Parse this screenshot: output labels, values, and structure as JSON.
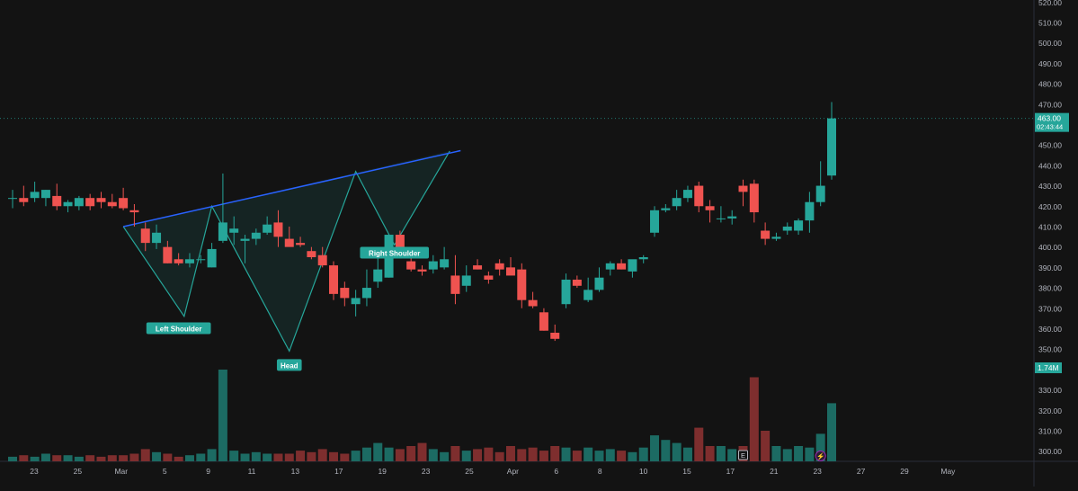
{
  "chart_data": {
    "type": "candlestick",
    "title": "",
    "theme": {
      "background": "#131313",
      "up": "#26a69a",
      "down": "#ef5350",
      "vol_up": "#1c6b63",
      "vol_down": "#7e2e2e",
      "trend": "#2962ff",
      "pattern": "#26a69a",
      "axis_text": "#b2b5be"
    },
    "y_axis": {
      "position": "right",
      "range": [
        295,
        521
      ],
      "ticks": [
        300,
        310,
        320,
        330,
        340,
        350,
        360,
        370,
        380,
        390,
        400,
        410,
        420,
        430,
        440,
        450,
        460,
        470,
        480,
        490,
        500,
        510,
        520
      ],
      "tick_labels": [
        "300.00",
        "310.00",
        "320.00",
        "330.00",
        "340.00",
        "350.00",
        "360.00",
        "370.00",
        "380.00",
        "390.00",
        "400.00",
        "410.00",
        "420.00",
        "430.00",
        "440.00",
        "450.00",
        "460.00",
        "470.00",
        "480.00",
        "490.00",
        "500.00",
        "510.00",
        "520.00"
      ]
    },
    "x_axis": {
      "ticks": [
        {
          "i": 2,
          "label": "23"
        },
        {
          "i": 4,
          "label": "25"
        },
        {
          "i": 6,
          "label": "Mar"
        },
        {
          "i": 8,
          "label": "5"
        },
        {
          "i": 10,
          "label": "9"
        },
        {
          "i": 12,
          "label": "11"
        },
        {
          "i": 14,
          "label": "13"
        },
        {
          "i": 16,
          "label": "17"
        },
        {
          "i": 18,
          "label": "19"
        },
        {
          "i": 20,
          "label": "23"
        },
        {
          "i": 22,
          "label": "25"
        },
        {
          "i": 24,
          "label": "Apr"
        },
        {
          "i": 26,
          "label": "6"
        },
        {
          "i": 28,
          "label": "8"
        },
        {
          "i": 30,
          "label": "10"
        },
        {
          "i": 32,
          "label": "15"
        },
        {
          "i": 34,
          "label": "17"
        },
        {
          "i": 36,
          "label": "21"
        },
        {
          "i": 38,
          "label": "23"
        },
        {
          "i": 40,
          "label": "27"
        },
        {
          "i": 42,
          "label": "29"
        },
        {
          "i": 44,
          "label": "May"
        }
      ]
    },
    "candles": [
      {
        "o": 424,
        "h": 428,
        "l": 419,
        "c": 424
      },
      {
        "o": 424,
        "h": 430,
        "l": 420,
        "c": 422
      },
      {
        "o": 424,
        "h": 432,
        "l": 422,
        "c": 427
      },
      {
        "o": 424,
        "h": 428,
        "l": 420,
        "c": 428
      },
      {
        "o": 425,
        "h": 431,
        "l": 418,
        "c": 420
      },
      {
        "o": 420,
        "h": 423,
        "l": 417,
        "c": 422
      },
      {
        "o": 420,
        "h": 425,
        "l": 418,
        "c": 424
      },
      {
        "o": 424,
        "h": 426,
        "l": 418,
        "c": 420
      },
      {
        "o": 424,
        "h": 427,
        "l": 419,
        "c": 422
      },
      {
        "o": 422,
        "h": 426,
        "l": 419,
        "c": 420
      },
      {
        "o": 424,
        "h": 429,
        "l": 418,
        "c": 419
      },
      {
        "o": 418,
        "h": 421,
        "l": 410,
        "c": 417
      },
      {
        "o": 409,
        "h": 412,
        "l": 398,
        "c": 402
      },
      {
        "o": 402,
        "h": 411,
        "l": 399,
        "c": 407
      },
      {
        "o": 400,
        "h": 403,
        "l": 392,
        "c": 392
      },
      {
        "o": 394,
        "h": 397,
        "l": 391,
        "c": 392
      },
      {
        "o": 392,
        "h": 397,
        "l": 390,
        "c": 394
      },
      {
        "o": 394,
        "h": 396,
        "l": 392,
        "c": 394
      },
      {
        "o": 390,
        "h": 402,
        "l": 390,
        "c": 399
      },
      {
        "o": 403,
        "h": 436,
        "l": 402,
        "c": 412
      },
      {
        "o": 407,
        "h": 415,
        "l": 401,
        "c": 409
      },
      {
        "o": 403,
        "h": 406,
        "l": 392,
        "c": 404
      },
      {
        "o": 404,
        "h": 409,
        "l": 401,
        "c": 407
      },
      {
        "o": 407,
        "h": 415,
        "l": 406,
        "c": 411
      },
      {
        "o": 412,
        "h": 418,
        "l": 400,
        "c": 405
      },
      {
        "o": 404,
        "h": 410,
        "l": 401,
        "c": 400
      },
      {
        "o": 402,
        "h": 405,
        "l": 400,
        "c": 401
      },
      {
        "o": 398,
        "h": 400,
        "l": 394,
        "c": 395
      },
      {
        "o": 396,
        "h": 400,
        "l": 390,
        "c": 391
      },
      {
        "o": 391,
        "h": 393,
        "l": 374,
        "c": 377
      },
      {
        "o": 380,
        "h": 383,
        "l": 371,
        "c": 375
      },
      {
        "o": 372,
        "h": 379,
        "l": 366,
        "c": 375
      },
      {
        "o": 375,
        "h": 389,
        "l": 371,
        "c": 380
      },
      {
        "o": 383,
        "h": 395,
        "l": 380,
        "c": 389
      },
      {
        "o": 385,
        "h": 406,
        "l": 385,
        "c": 406
      },
      {
        "o": 406,
        "h": 408,
        "l": 397,
        "c": 397
      },
      {
        "o": 393,
        "h": 396,
        "l": 388,
        "c": 389
      },
      {
        "o": 389,
        "h": 391,
        "l": 386,
        "c": 388
      },
      {
        "o": 389,
        "h": 396,
        "l": 387,
        "c": 393
      },
      {
        "o": 390,
        "h": 400,
        "l": 389,
        "c": 394
      },
      {
        "o": 386,
        "h": 396,
        "l": 372,
        "c": 377
      },
      {
        "o": 381,
        "h": 391,
        "l": 378,
        "c": 386
      },
      {
        "o": 391,
        "h": 394,
        "l": 389,
        "c": 389
      },
      {
        "o": 386,
        "h": 388,
        "l": 382,
        "c": 384
      },
      {
        "o": 392,
        "h": 394,
        "l": 386,
        "c": 389
      },
      {
        "o": 390,
        "h": 395,
        "l": 387,
        "c": 386
      },
      {
        "o": 389,
        "h": 392,
        "l": 370,
        "c": 374
      },
      {
        "o": 374,
        "h": 378,
        "l": 370,
        "c": 371
      },
      {
        "o": 368,
        "h": 370,
        "l": 359,
        "c": 359
      },
      {
        "o": 358,
        "h": 362,
        "l": 354,
        "c": 355
      },
      {
        "o": 372,
        "h": 387,
        "l": 370,
        "c": 384
      },
      {
        "o": 384,
        "h": 386,
        "l": 380,
        "c": 381
      },
      {
        "o": 374,
        "h": 385,
        "l": 373,
        "c": 379
      },
      {
        "o": 379,
        "h": 390,
        "l": 378,
        "c": 385
      },
      {
        "o": 389,
        "h": 393,
        "l": 386,
        "c": 392
      },
      {
        "o": 392,
        "h": 394,
        "l": 389,
        "c": 389
      },
      {
        "o": 388,
        "h": 392,
        "l": 385,
        "c": 394
      },
      {
        "o": 394,
        "h": 396,
        "l": 392,
        "c": 395
      },
      {
        "o": 407,
        "h": 420,
        "l": 405,
        "c": 418
      },
      {
        "o": 418,
        "h": 421,
        "l": 417,
        "c": 419
      },
      {
        "o": 420,
        "h": 428,
        "l": 418,
        "c": 424
      },
      {
        "o": 424,
        "h": 430,
        "l": 422,
        "c": 428
      },
      {
        "o": 430,
        "h": 432,
        "l": 417,
        "c": 420
      },
      {
        "o": 420,
        "h": 423,
        "l": 412,
        "c": 418
      },
      {
        "o": 414,
        "h": 420,
        "l": 412,
        "c": 414
      },
      {
        "o": 414,
        "h": 418,
        "l": 411,
        "c": 415
      },
      {
        "o": 430,
        "h": 433,
        "l": 420,
        "c": 427
      },
      {
        "o": 431,
        "h": 433,
        "l": 412,
        "c": 417
      },
      {
        "o": 408,
        "h": 412,
        "l": 401,
        "c": 404
      },
      {
        "o": 404,
        "h": 407,
        "l": 403,
        "c": 405
      },
      {
        "o": 408,
        "h": 412,
        "l": 406,
        "c": 410
      },
      {
        "o": 408,
        "h": 414,
        "l": 406,
        "c": 413
      },
      {
        "o": 413,
        "h": 427,
        "l": 407,
        "c": 422
      },
      {
        "o": 422,
        "h": 442,
        "l": 420,
        "c": 430
      },
      {
        "o": 435,
        "h": 471,
        "l": 433,
        "c": 463
      }
    ],
    "volume_axis_max": 1.0,
    "volume": [
      0.03,
      0.04,
      0.03,
      0.05,
      0.04,
      0.04,
      0.03,
      0.04,
      0.03,
      0.04,
      0.04,
      0.05,
      0.08,
      0.06,
      0.05,
      0.03,
      0.04,
      0.05,
      0.08,
      0.6,
      0.07,
      0.05,
      0.06,
      0.05,
      0.05,
      0.05,
      0.07,
      0.06,
      0.08,
      0.06,
      0.05,
      0.07,
      0.09,
      0.12,
      0.09,
      0.08,
      0.1,
      0.12,
      0.08,
      0.06,
      0.1,
      0.07,
      0.08,
      0.09,
      0.06,
      0.1,
      0.08,
      0.09,
      0.07,
      0.1,
      0.09,
      0.07,
      0.09,
      0.07,
      0.08,
      0.07,
      0.06,
      0.09,
      0.17,
      0.14,
      0.12,
      0.09,
      0.22,
      0.1,
      0.1,
      0.08,
      0.1,
      0.55,
      0.2,
      0.1,
      0.08,
      0.1,
      0.09,
      0.18,
      0.38
    ],
    "pattern": {
      "neckline": [
        {
          "i": 10,
          "p": 410
        },
        {
          "i": 39.5,
          "p": 447
        }
      ],
      "points": [
        {
          "i": 10,
          "p": 410
        },
        {
          "i": 15.5,
          "p": 366
        },
        {
          "i": 18,
          "p": 420
        },
        {
          "i": 25,
          "p": 349
        },
        {
          "i": 31,
          "p": 437
        },
        {
          "i": 34.5,
          "p": 401
        },
        {
          "i": 39.5,
          "p": 447
        }
      ],
      "labels": [
        {
          "i": 15,
          "p": 360,
          "text": "Left Shoulder"
        },
        {
          "i": 25,
          "p": 342,
          "text": "Head"
        },
        {
          "i": 34.5,
          "p": 397,
          "text": "Right Shoulder"
        }
      ]
    },
    "last_price": {
      "value": 463.0,
      "label": "463.00",
      "timer": "02:43:44"
    },
    "volume_label": "1.74M",
    "markers": [
      {
        "i": 33,
        "text": "E"
      },
      {
        "i": 37,
        "text": "⚡"
      }
    ]
  }
}
